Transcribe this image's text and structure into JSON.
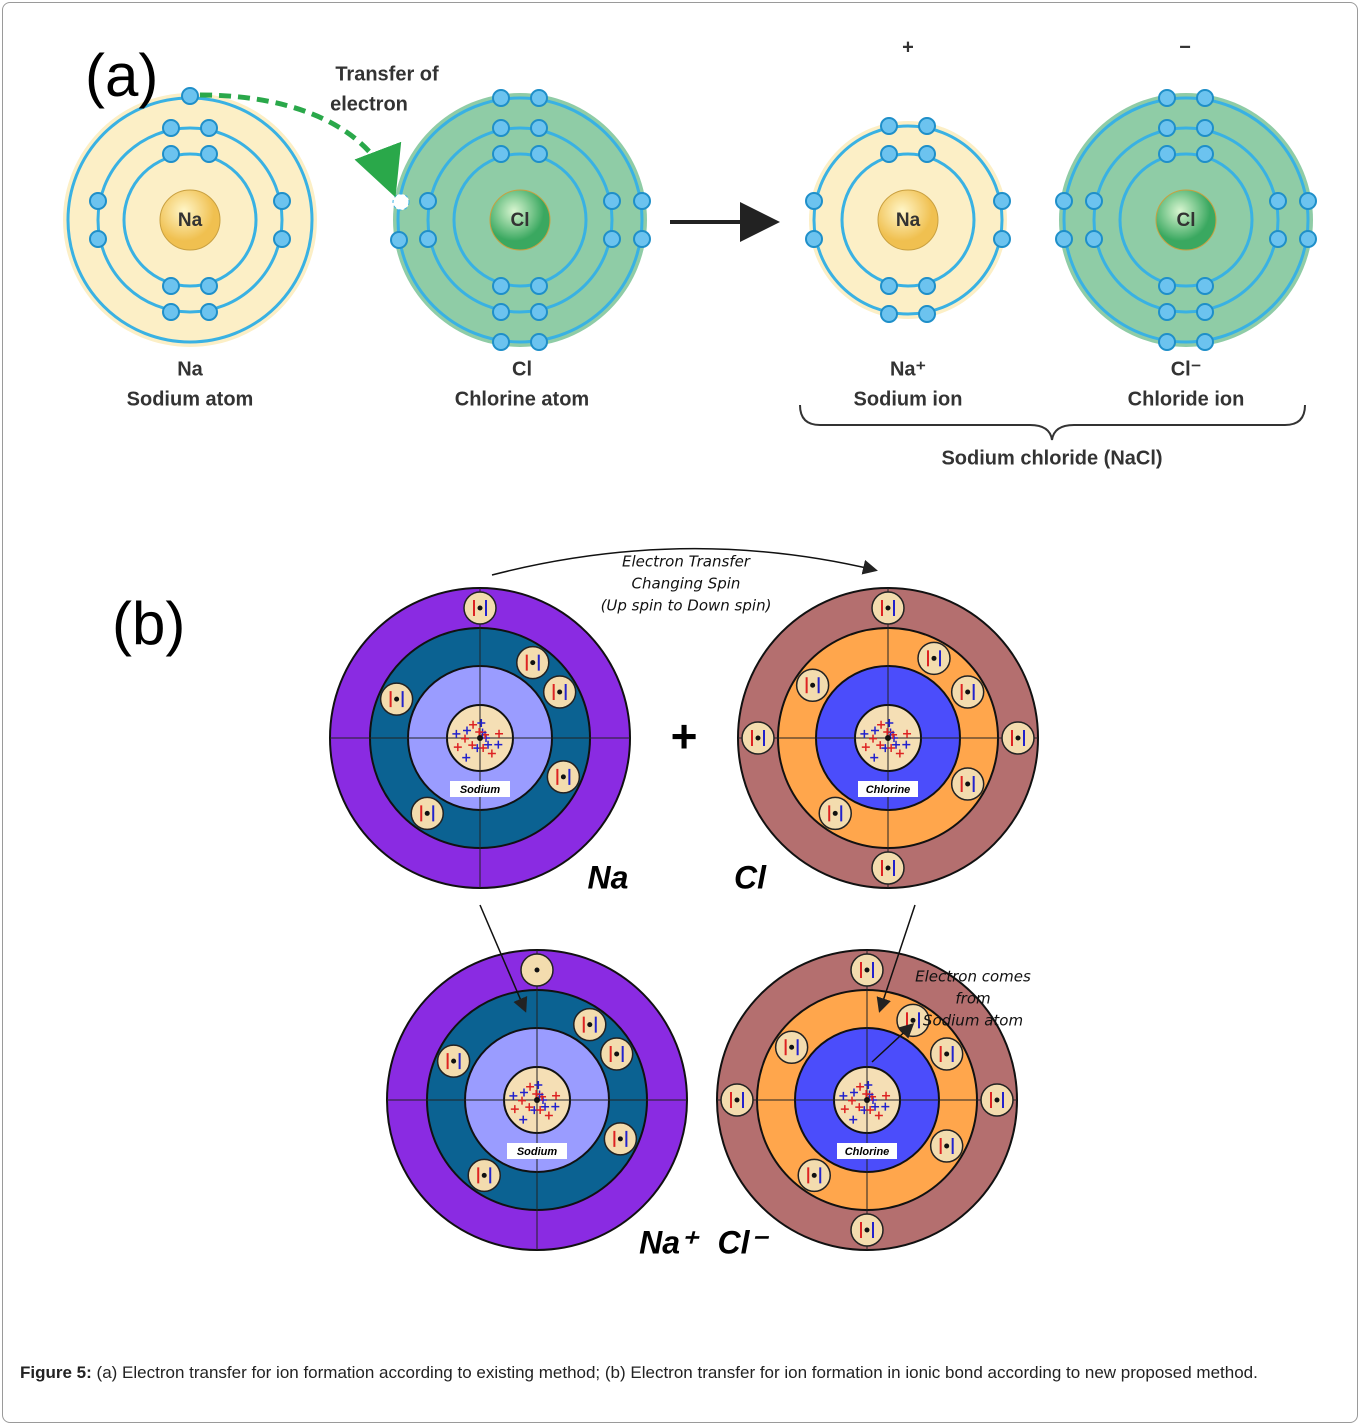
{
  "panel_a": {
    "label": "(a)",
    "transfer_label": [
      "Transfer of",
      "electron"
    ],
    "atoms": [
      {
        "nucleus": "Na",
        "symbol": "Na",
        "name": "Sodium atom"
      },
      {
        "nucleus": "Cl",
        "symbol": "Cl",
        "name": "Chlorine atom"
      },
      {
        "nucleus": "Na",
        "charge": "+",
        "symbol": "Na⁺",
        "name": "Sodium ion"
      },
      {
        "nucleus": "Cl",
        "charge": "−",
        "symbol": "Cl⁻",
        "name": "Chloride ion"
      }
    ],
    "compound": "Sodium chloride (NaCl)"
  },
  "panel_b": {
    "label": "(b)",
    "transfer_note": [
      "Electron Transfer",
      "Changing Spin",
      "(Up spin to Down spin)"
    ],
    "plus": "+",
    "atoms": [
      {
        "name": "Sodium",
        "symbol": "Na"
      },
      {
        "name": "Chlorine",
        "symbol": "Cl"
      },
      {
        "name": "Sodium",
        "symbol": "Na⁺"
      },
      {
        "name": "Chlorine",
        "symbol": "Cl⁻"
      }
    ],
    "electron_note": [
      "Electron comes",
      "from",
      "Sodium atom"
    ]
  },
  "caption": {
    "label": "Figure 5:",
    "text": "(a) Electron transfer for ion formation according to existing method; (b) Electron transfer for ion formation in ionic bond according to new proposed method."
  }
}
